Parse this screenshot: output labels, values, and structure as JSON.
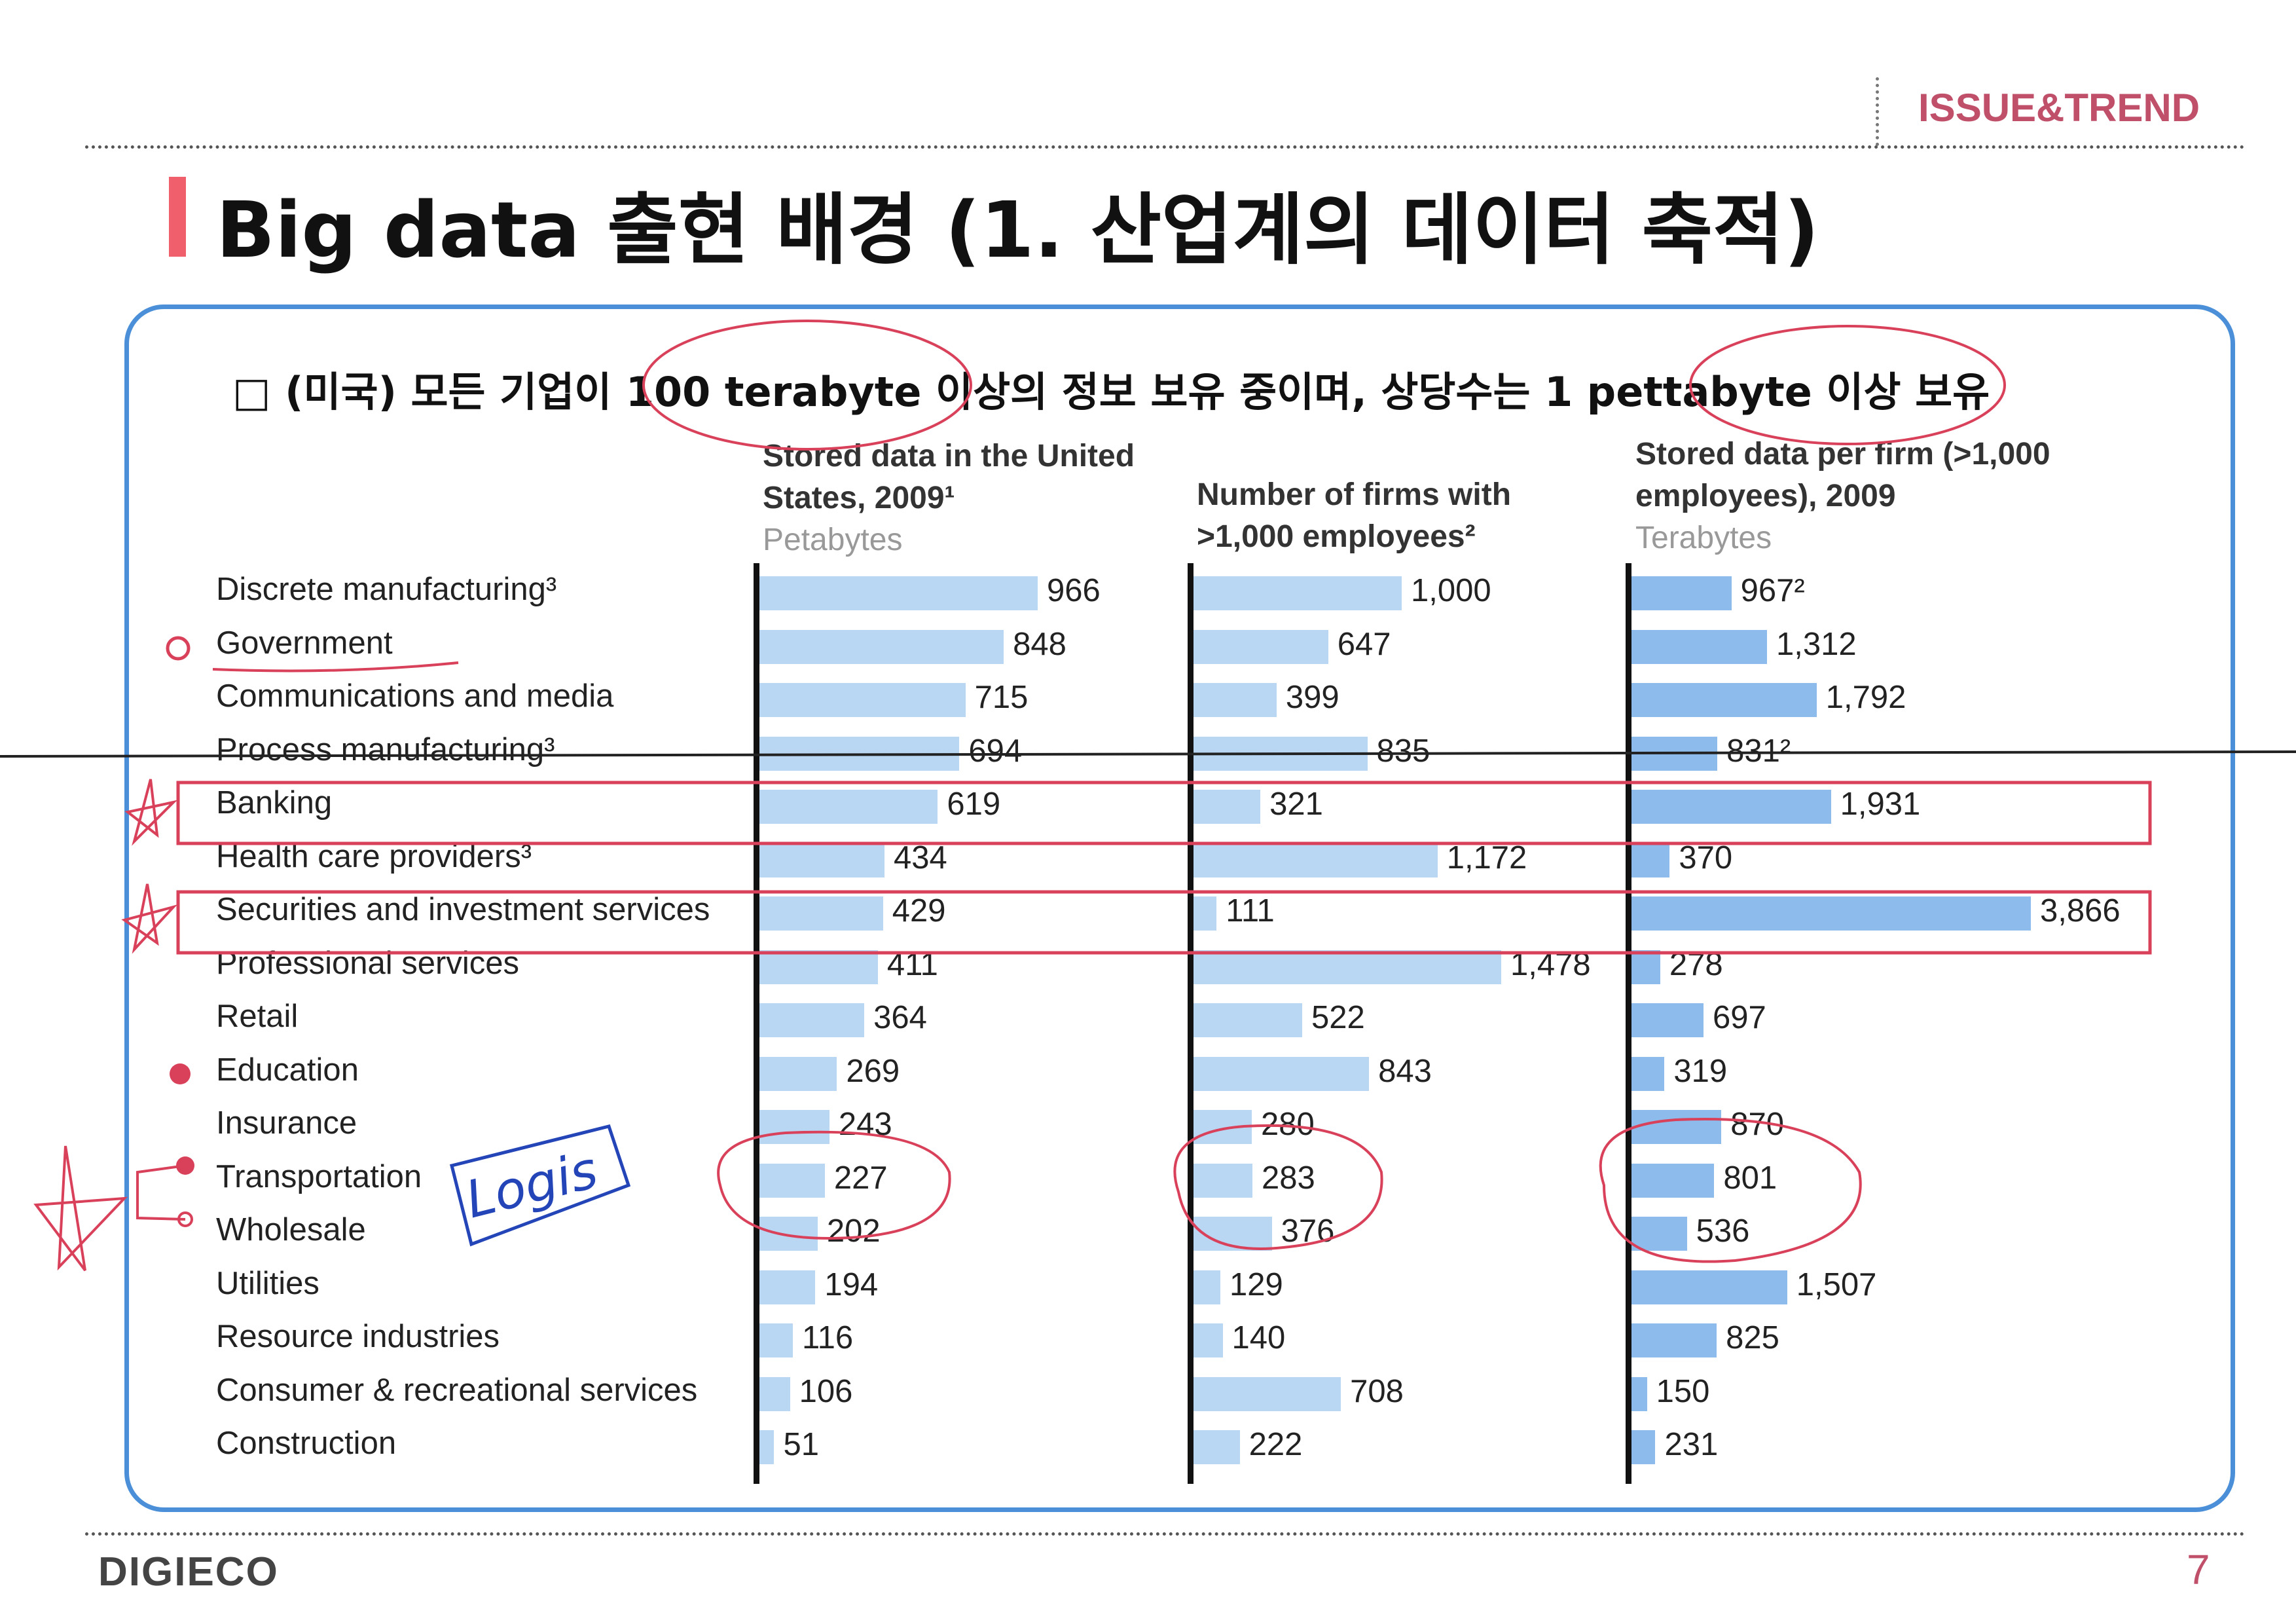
{
  "header": {
    "section": "ISSUE&TREND",
    "title": "Big data 출현 배경 (1. 산업계의 데이터 축적)"
  },
  "subtitle": "□ (미국) 모든 기업이 100 terabyte 이상의 정보 보유 중이며, 상당수는 1 pettabyte 이상 보유",
  "footer": {
    "logo": "DIGIECO",
    "page": "7"
  },
  "annotation": {
    "handwritten": "Logis"
  },
  "colors": {
    "frame": "#4a8fd8",
    "bar_light": "#b9d6f2",
    "bar_mid": "#8dbcec",
    "highlight": "#d9405a"
  },
  "chart_data": {
    "type": "bar",
    "orientation": "horizontal",
    "categories": [
      "Discrete manufacturing³",
      "Government",
      "Communications and media",
      "Process manufacturing³",
      "Banking",
      "Health care providers³",
      "Securities and investment services",
      "Professional services",
      "Retail",
      "Education",
      "Insurance",
      "Transportation",
      "Wholesale",
      "Utilities",
      "Resource industries",
      "Consumer & recreational services",
      "Construction"
    ],
    "highlighted_categories": [
      "Banking",
      "Securities and investment services"
    ],
    "panels": [
      {
        "title": "Stored data in the United States, 2009¹",
        "unit": "Petabytes",
        "values": [
          966,
          848,
          715,
          694,
          619,
          434,
          429,
          411,
          364,
          269,
          243,
          227,
          202,
          194,
          116,
          106,
          51
        ],
        "labels": [
          "966",
          "848",
          "715",
          "694",
          "619",
          "434",
          "429",
          "411",
          "364",
          "269",
          "243",
          "227",
          "202",
          "194",
          "116",
          "106",
          "51"
        ],
        "max": 966
      },
      {
        "title": "Number of firms with >1,000 employees²",
        "unit": "",
        "values": [
          1000,
          647,
          399,
          835,
          321,
          1172,
          111,
          1478,
          522,
          843,
          280,
          283,
          376,
          129,
          140,
          708,
          222
        ],
        "labels": [
          "1,000",
          "647",
          "399",
          "835",
          "321",
          "1,172",
          "111",
          "1,478",
          "522",
          "843",
          "280",
          "283",
          "376",
          "129",
          "140",
          "708",
          "222"
        ],
        "max": 1478
      },
      {
        "title": "Stored data per firm (>1,000 employees), 2009",
        "unit": "Terabytes",
        "values": [
          967,
          1312,
          1792,
          831,
          1931,
          370,
          3866,
          278,
          697,
          319,
          870,
          801,
          536,
          1507,
          825,
          150,
          231
        ],
        "labels": [
          "967²",
          "1,312",
          "1,792",
          "831²",
          "1,931",
          "370",
          "3,866",
          "278",
          "697",
          "319",
          "870",
          "801",
          "536",
          "1,507",
          "825",
          "150",
          "231"
        ],
        "max": 3866
      }
    ]
  }
}
